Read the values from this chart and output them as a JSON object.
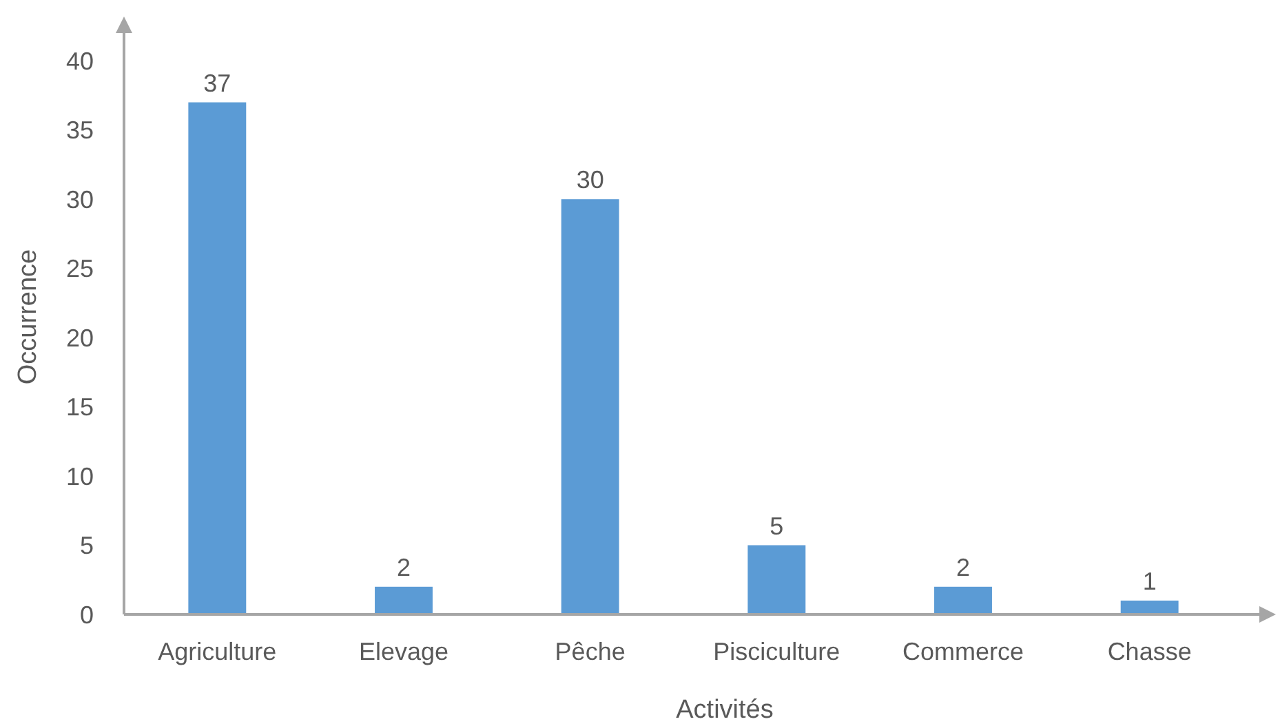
{
  "chart_data": {
    "type": "bar",
    "xlabel": "Activités",
    "ylabel": "Occurrence",
    "categories": [
      "Agriculture",
      "Elevage",
      "Pêche",
      "Pisciculture",
      "Commerce",
      "Chasse"
    ],
    "values": [
      37,
      2,
      30,
      5,
      2,
      1
    ],
    "color": "#5b9bd5",
    "ylim": [
      0,
      43
    ],
    "yticks": [
      0,
      5,
      10,
      15,
      20,
      25,
      30,
      35,
      40
    ],
    "grid": false,
    "data_labels": true
  }
}
